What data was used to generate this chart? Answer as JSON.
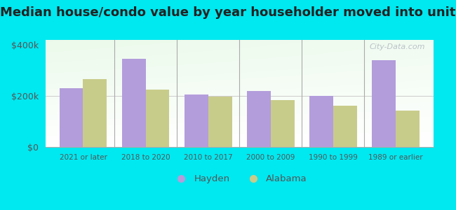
{
  "title": "Median house/condo value by year householder moved into unit",
  "categories": [
    "2021 or later",
    "2018 to 2020",
    "2010 to 2017",
    "2000 to 2009",
    "1990 to 1999",
    "1989 or earlier"
  ],
  "hayden_values": [
    230000,
    345000,
    205000,
    220000,
    200000,
    340000
  ],
  "alabama_values": [
    265000,
    225000,
    198000,
    183000,
    163000,
    143000
  ],
  "hayden_color": "#b39ddb",
  "alabama_color": "#c8cc8a",
  "background_color": "#00e8f0",
  "ylabel_ticks": [
    "$0",
    "$200k",
    "$400k"
  ],
  "ytick_values": [
    0,
    200000,
    400000
  ],
  "ylim": [
    0,
    420000
  ],
  "bar_width": 0.38,
  "title_fontsize": 13,
  "watermark": "City-Data.com"
}
